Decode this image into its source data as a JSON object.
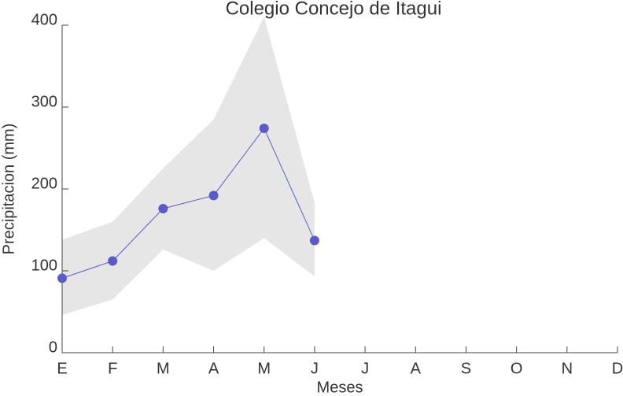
{
  "chart_data": {
    "type": "line",
    "title": "Colegio Concejo de Itagui",
    "xlabel": "Meses",
    "ylabel": "Precipitacion (mm)",
    "categories": [
      "E",
      "F",
      "M",
      "A",
      "M",
      "J",
      "J",
      "A",
      "S",
      "O",
      "N",
      "D"
    ],
    "values": [
      91,
      112,
      176,
      192,
      274,
      137,
      null,
      null,
      null,
      null,
      null,
      null
    ],
    "upper": [
      138,
      160,
      225,
      285,
      410,
      183,
      null,
      null,
      null,
      null,
      null,
      null
    ],
    "lower": [
      46,
      65,
      126,
      100,
      140,
      93,
      null,
      null,
      null,
      null,
      null,
      null
    ],
    "color": "#5b5bc8",
    "band_color": "#e6e6e6",
    "ylim": [
      0,
      400
    ],
    "yticks": [
      0,
      100,
      200,
      300,
      400
    ]
  }
}
